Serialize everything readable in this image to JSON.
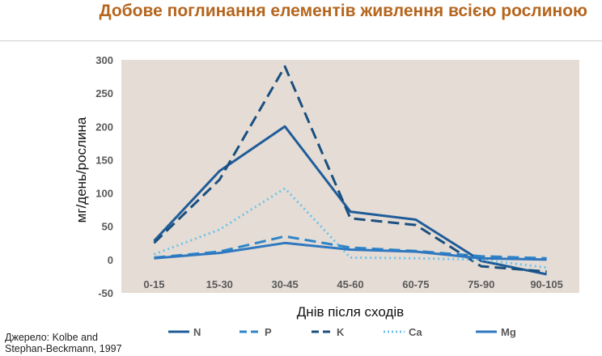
{
  "page": {
    "title": "Добове поглинання елементів живлення всією рослиною",
    "source_line1": "Джерело: Kolbe and",
    "source_line2": "Stephan-Beckmann, 1997"
  },
  "chart_data": {
    "type": "line",
    "categories": [
      "0-15",
      "15-30",
      "30-45",
      "45-60",
      "60-75",
      "75-90",
      "90-105"
    ],
    "ylabel": "мг/день/рослина",
    "xlabel": "Днів після сходів",
    "ylim": [
      -50,
      300
    ],
    "yticks": [
      300,
      250,
      200,
      150,
      100,
      50,
      0,
      -50
    ],
    "grid": false,
    "legend_position": "bottom",
    "plot_background": "#e5ddd5",
    "series": [
      {
        "name": "N",
        "values": [
          28,
          133,
          200,
          72,
          60,
          -2,
          -22
        ],
        "color": "#1f5c99",
        "dash": "solid",
        "width": 3
      },
      {
        "name": "P",
        "values": [
          3,
          12,
          35,
          18,
          13,
          5,
          2
        ],
        "color": "#2e86c9",
        "dash": "long-dash",
        "width": 3
      },
      {
        "name": "K",
        "values": [
          25,
          120,
          290,
          62,
          52,
          -10,
          -18
        ],
        "color": "#1a4f7f",
        "dash": "long-dash",
        "width": 3
      },
      {
        "name": "Ca",
        "values": [
          8,
          45,
          107,
          3,
          2,
          0,
          -12
        ],
        "color": "#6fc1ea",
        "dash": "dotted",
        "width": 3
      },
      {
        "name": "Mg",
        "values": [
          2,
          10,
          25,
          15,
          12,
          2,
          0
        ],
        "color": "#2f78c0",
        "dash": "solid",
        "width": 3
      }
    ]
  }
}
